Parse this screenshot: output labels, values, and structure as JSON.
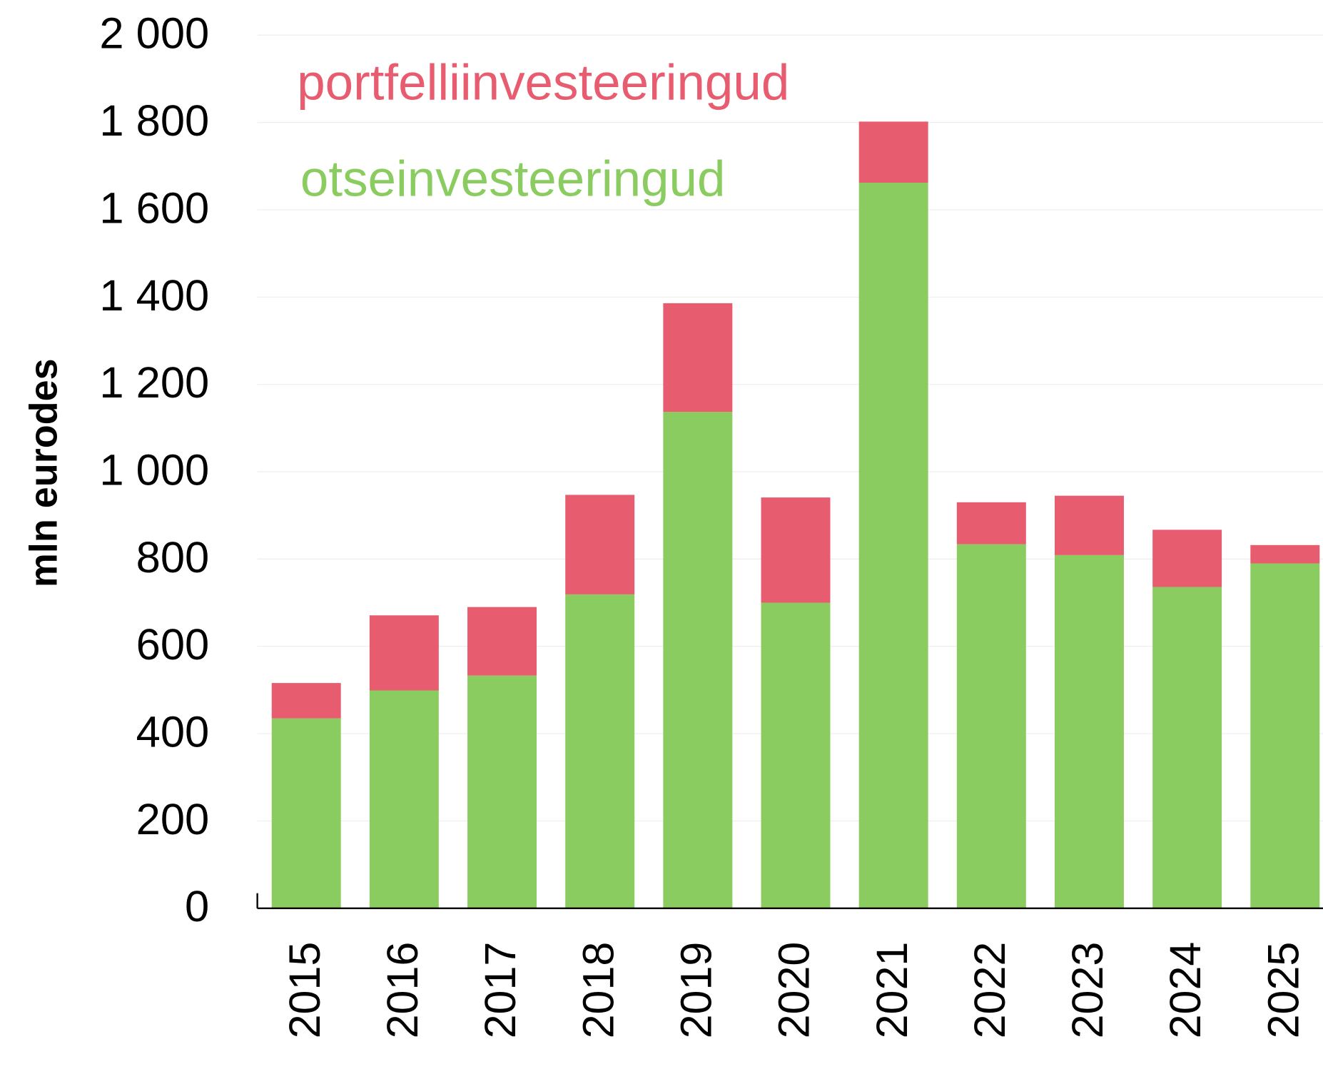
{
  "chart_data": {
    "type": "stacked_bar",
    "y_label": "mln eurodes",
    "categories": [
      "2015",
      "2016",
      "2017",
      "2018",
      "2019",
      "2020",
      "2021",
      "2022",
      "2023",
      "2024",
      "2025"
    ],
    "series": [
      {
        "name": "otseinvesteeringud",
        "color": "#8bcc60",
        "values": [
          435,
          499,
          533,
          719,
          1137,
          700,
          1662,
          834,
          809,
          736,
          790
        ]
      },
      {
        "name": "portfelliinvesteeringud",
        "color": "#e85c70",
        "values": [
          81,
          172,
          157,
          228,
          249,
          241,
          140,
          96,
          136,
          131,
          42
        ]
      }
    ],
    "ylim": [
      0,
      2000
    ],
    "yticks": [
      0,
      200,
      400,
      600,
      800,
      {
        "value": 1000,
        "label": "1 000"
      },
      {
        "value": 1200,
        "label": "1 200"
      },
      {
        "value": 1400,
        "label": "1 400"
      },
      {
        "value": 1600,
        "label": "1 600"
      },
      {
        "value": 1800,
        "label": "1 800"
      },
      {
        "value": 2000,
        "label": "2 000"
      }
    ],
    "grid": true
  }
}
